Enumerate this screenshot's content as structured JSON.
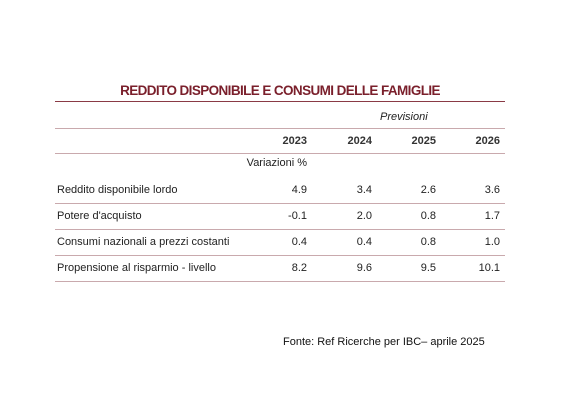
{
  "table": {
    "title": "REDDITO DISPONIBILE E CONSUMI DELLE FAMIGLIE",
    "forecast_label": "Previsioni",
    "columns": [
      "2023",
      "2024",
      "2025",
      "2026"
    ],
    "unit_label": "Variazioni %",
    "rows": [
      [
        "Reddito disponibile lordo",
        "4.9",
        "3.4",
        "2.6",
        "3.6"
      ],
      [
        "Potere d'acquisto",
        "-0.1",
        "2.0",
        "0.8",
        "1.7"
      ],
      [
        "Consumi nazionali a prezzi costanti",
        "0.4",
        "0.4",
        "0.8",
        "1.0"
      ],
      [
        "Propensione al risparmio - livello",
        "8.2",
        "9.6",
        "9.5",
        "10.1"
      ]
    ]
  },
  "source": "Fonte: Ref Ricerche per IBC– aprile 2025"
}
